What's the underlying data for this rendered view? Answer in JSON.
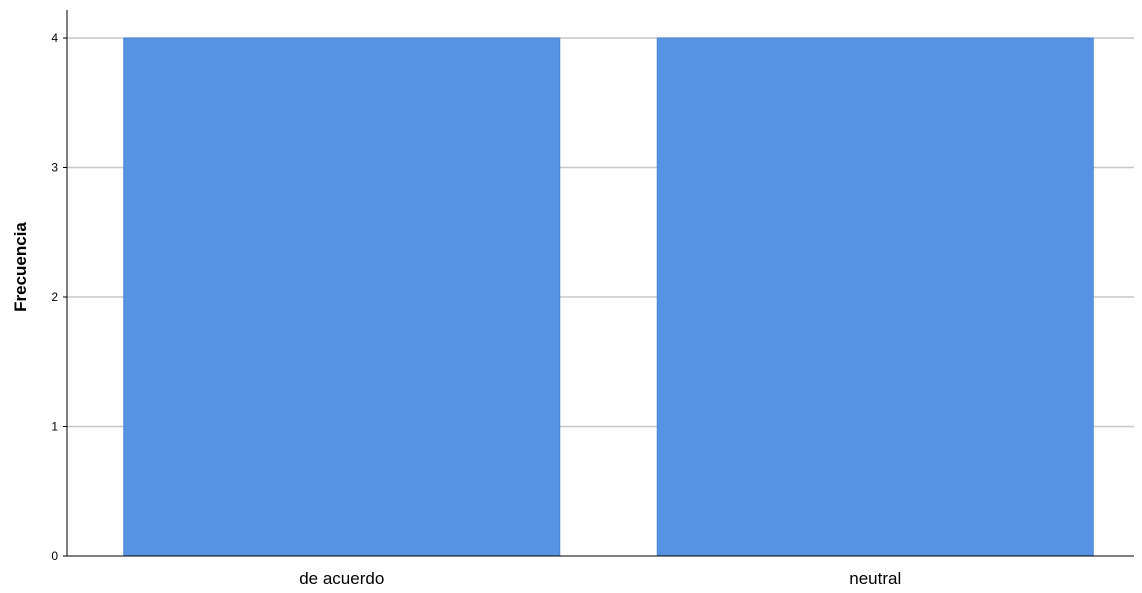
{
  "chart_data": {
    "type": "bar",
    "categories": [
      "de acuerdo",
      "neutral"
    ],
    "values": [
      4,
      4
    ],
    "title": "",
    "xlabel": "",
    "ylabel": "Frecuencia",
    "ylim": [
      0,
      4
    ],
    "yticks": [
      0,
      1,
      2,
      3,
      4
    ],
    "grid": true,
    "legend": "none",
    "colors": {
      "bar": "#5694E3",
      "bar_edge": "#4A86D6",
      "grid": "#C8C8C8",
      "axis": "#000000"
    }
  }
}
